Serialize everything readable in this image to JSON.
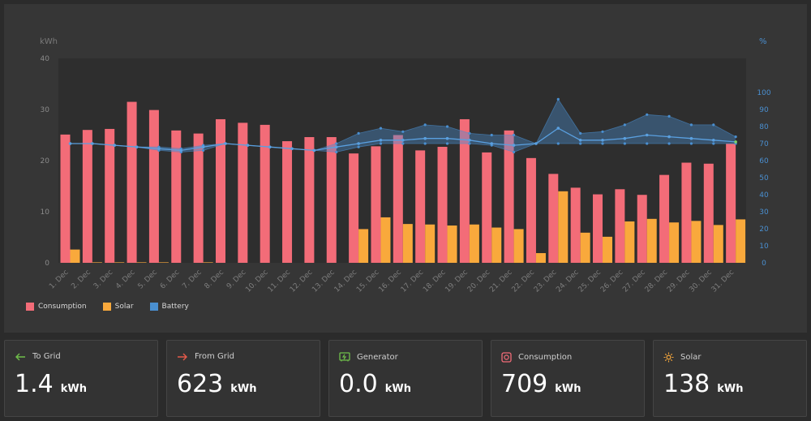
{
  "chart": {
    "left_axis_unit": "kWh",
    "right_axis_unit": "%",
    "legend": [
      {
        "label": "Consumption",
        "color": "#f36c78"
      },
      {
        "label": "Solar",
        "color": "#f9a93c"
      },
      {
        "label": "Battery",
        "color": "#4a8fd0"
      }
    ]
  },
  "chart_data": {
    "type": "bar",
    "categories": [
      "1. Dec",
      "2. Dec",
      "3. Dec",
      "4. Dec",
      "5. Dec",
      "6. Dec",
      "7. Dec",
      "8. Dec",
      "9. Dec",
      "10. Dec",
      "11. Dec",
      "12. Dec",
      "13. Dec",
      "14. Dec",
      "15. Dec",
      "16. Dec",
      "17. Dec",
      "18. Dec",
      "19. Dec",
      "20. Dec",
      "21. Dec",
      "22. Dec",
      "23. Dec",
      "24. Dec",
      "25. Dec",
      "26. Dec",
      "27. Dec",
      "28. Dec",
      "29. Dec",
      "30. Dec",
      "31. Dec"
    ],
    "series": [
      {
        "name": "Consumption",
        "axis": "left",
        "values": [
          25.1,
          26.0,
          26.2,
          31.5,
          29.9,
          25.9,
          25.3,
          28.1,
          27.4,
          27.0,
          23.8,
          24.6,
          24.6,
          21.4,
          22.8,
          25.0,
          22.0,
          22.7,
          28.1,
          21.6,
          25.9,
          20.5,
          17.4,
          14.7,
          13.4,
          14.4,
          13.3,
          17.2,
          19.6,
          19.4,
          23.3
        ]
      },
      {
        "name": "Solar",
        "axis": "left",
        "values": [
          2.6,
          0.1,
          0.1,
          0.1,
          0.1,
          0,
          0.1,
          0,
          0,
          0,
          0,
          0,
          0,
          6.6,
          8.9,
          7.6,
          7.5,
          7.3,
          7.5,
          6.9,
          6.6,
          1.9,
          14.0,
          5.9,
          5.1,
          8.1,
          8.6,
          7.9,
          8.2,
          7.4,
          8.5
        ]
      },
      {
        "name": "Battery",
        "axis": "right",
        "type": "line",
        "values": [
          70,
          70,
          69,
          68,
          67,
          66,
          68,
          70,
          69,
          68,
          67,
          66,
          68,
          70,
          72,
          72,
          73,
          73,
          72,
          70,
          69,
          70,
          79,
          72,
          72,
          73,
          75,
          74,
          73,
          72,
          71
        ],
        "max": [
          70,
          70,
          69,
          68,
          68,
          67,
          69,
          70,
          69,
          68,
          67,
          66,
          70,
          76,
          79,
          77,
          81,
          80,
          76,
          75,
          75,
          70,
          96,
          76,
          77,
          81,
          87,
          86,
          81,
          81,
          74
        ],
        "min": [
          70,
          70,
          69,
          68,
          66,
          65,
          66,
          70,
          69,
          68,
          67,
          66,
          65,
          68,
          70,
          70,
          70,
          70,
          70,
          69,
          65,
          70,
          70,
          70,
          70,
          70,
          70,
          70,
          70,
          70,
          70
        ]
      }
    ],
    "y_left": {
      "ticks": [
        0,
        10,
        20,
        30,
        40
      ],
      "ylim": [
        0,
        40
      ]
    },
    "y_right": {
      "ticks": [
        0,
        10,
        20,
        30,
        40,
        50,
        60,
        70,
        80,
        90,
        100
      ],
      "ylim": [
        0,
        120
      ]
    },
    "legend_position": "bottom-left",
    "grid": false
  },
  "stats": [
    {
      "label": "To Grid",
      "value": "1.4",
      "unit": "kWh",
      "icon": "arrow-left-icon",
      "icon_color": "#6fbf4a"
    },
    {
      "label": "From Grid",
      "value": "623",
      "unit": "kWh",
      "icon": "arrow-right-icon",
      "icon_color": "#e55a4a"
    },
    {
      "label": "Generator",
      "value": "0.0",
      "unit": "kWh",
      "icon": "generator-icon",
      "icon_color": "#6fbf4a"
    },
    {
      "label": "Consumption",
      "value": "709",
      "unit": "kWh",
      "icon": "consumption-icon",
      "icon_color": "#f36c78"
    },
    {
      "label": "Solar",
      "value": "138",
      "unit": "kWh",
      "icon": "sun-icon",
      "icon_color": "#f9a93c"
    }
  ]
}
